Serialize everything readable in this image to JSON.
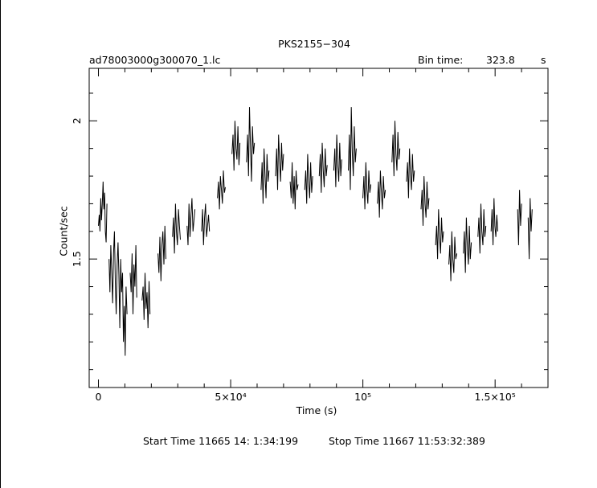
{
  "chart_data": {
    "type": "line",
    "title": "PKS2155−304",
    "subtitle_left": "ad78003000g300070_1.lc",
    "bin_time_label": "Bin time:",
    "bin_time_value": "323.8",
    "bin_time_unit": "s",
    "xlabel": "Time (s)",
    "ylabel": "Count/sec",
    "footer": {
      "start": "Start Time 11665 14: 1:34:199",
      "stop": "Stop Time 11667 11:53:32:389"
    },
    "xlim": [
      -3500,
      170000
    ],
    "ylim": [
      1.035,
      2.19
    ],
    "x_ticks": [
      {
        "value": 0,
        "label": "0"
      },
      {
        "value": 50000,
        "label": "5×10⁴"
      },
      {
        "value": 100000,
        "label": "10⁵"
      },
      {
        "value": 150000,
        "label": "1.5×10⁵"
      }
    ],
    "y_ticks": [
      {
        "value": 1.5,
        "label": "1.5"
      },
      {
        "value": 2.0,
        "label": "2"
      }
    ],
    "grid": false,
    "segments": [
      {
        "t_start": 0,
        "t_end": 3200,
        "values": [
          1.62,
          1.66,
          1.6,
          1.72,
          1.64,
          1.7,
          1.78,
          1.68,
          1.74,
          1.6,
          1.56,
          1.7
        ]
      },
      {
        "t_start": 4000,
        "t_end": 10800,
        "values": [
          1.5,
          1.38,
          1.55,
          1.46,
          1.34,
          1.52,
          1.6,
          1.42,
          1.3,
          1.48,
          1.56,
          1.44,
          1.25,
          1.5,
          1.38,
          1.45,
          1.2,
          1.33,
          1.15,
          1.4,
          1.3
        ]
      },
      {
        "t_start": 12000,
        "t_end": 14500,
        "values": [
          1.45,
          1.38,
          1.52,
          1.3,
          1.48,
          1.4,
          1.55,
          1.36
        ]
      },
      {
        "t_start": 16500,
        "t_end": 19500,
        "values": [
          1.35,
          1.4,
          1.28,
          1.45,
          1.32,
          1.38,
          1.25,
          1.42,
          1.3
        ]
      },
      {
        "t_start": 22500,
        "t_end": 25500,
        "values": [
          1.52,
          1.45,
          1.58,
          1.42,
          1.55,
          1.6,
          1.48,
          1.62,
          1.5
        ]
      },
      {
        "t_start": 28000,
        "t_end": 31000,
        "values": [
          1.58,
          1.65,
          1.52,
          1.7,
          1.6,
          1.55,
          1.68,
          1.62,
          1.57
        ]
      },
      {
        "t_start": 33500,
        "t_end": 36500,
        "values": [
          1.62,
          1.55,
          1.7,
          1.58,
          1.66,
          1.72,
          1.6,
          1.64,
          1.68
        ]
      },
      {
        "t_start": 39000,
        "t_end": 42000,
        "values": [
          1.6,
          1.68,
          1.55,
          1.65,
          1.7,
          1.58,
          1.62,
          1.66,
          1.6
        ]
      },
      {
        "t_start": 45000,
        "t_end": 48000,
        "values": [
          1.72,
          1.78,
          1.68,
          1.8,
          1.75,
          1.7,
          1.82,
          1.74,
          1.76
        ]
      },
      {
        "t_start": 50500,
        "t_end": 53500,
        "values": [
          1.88,
          1.95,
          1.82,
          2.0,
          1.9,
          1.86,
          1.98,
          1.84,
          1.92
        ]
      },
      {
        "t_start": 56000,
        "t_end": 59000,
        "values": [
          1.85,
          1.95,
          1.8,
          2.05,
          1.9,
          1.78,
          1.98,
          1.88,
          1.92
        ]
      },
      {
        "t_start": 61500,
        "t_end": 64500,
        "values": [
          1.75,
          1.85,
          1.7,
          1.9,
          1.8,
          1.72,
          1.88,
          1.78,
          1.82
        ]
      },
      {
        "t_start": 67000,
        "t_end": 70000,
        "values": [
          1.8,
          1.9,
          1.75,
          1.95,
          1.85,
          1.78,
          1.92,
          1.82,
          1.88
        ]
      },
      {
        "t_start": 72500,
        "t_end": 75500,
        "values": [
          1.78,
          1.72,
          1.85,
          1.7,
          1.8,
          1.68,
          1.82,
          1.75,
          1.77
        ]
      },
      {
        "t_start": 78000,
        "t_end": 81000,
        "values": [
          1.75,
          1.82,
          1.7,
          1.88,
          1.78,
          1.72,
          1.85,
          1.74,
          1.8
        ]
      },
      {
        "t_start": 83500,
        "t_end": 86500,
        "values": [
          1.8,
          1.88,
          1.74,
          1.92,
          1.82,
          1.76,
          1.9,
          1.8,
          1.84
        ]
      },
      {
        "t_start": 89000,
        "t_end": 92000,
        "values": [
          1.82,
          1.9,
          1.76,
          1.95,
          1.84,
          1.78,
          1.92,
          1.8,
          1.86
        ]
      },
      {
        "t_start": 94500,
        "t_end": 97500,
        "values": [
          1.82,
          1.95,
          1.75,
          2.05,
          1.88,
          1.8,
          1.98,
          1.85,
          1.9
        ]
      },
      {
        "t_start": 100000,
        "t_end": 103000,
        "values": [
          1.72,
          1.8,
          1.68,
          1.85,
          1.75,
          1.7,
          1.82,
          1.74,
          1.77
        ]
      },
      {
        "t_start": 105500,
        "t_end": 108500,
        "values": [
          1.7,
          1.78,
          1.65,
          1.82,
          1.74,
          1.68,
          1.8,
          1.72,
          1.75
        ]
      },
      {
        "t_start": 111000,
        "t_end": 114000,
        "values": [
          1.85,
          1.95,
          1.8,
          2.0,
          1.88,
          1.82,
          1.96,
          1.86,
          1.9
        ]
      },
      {
        "t_start": 116500,
        "t_end": 119500,
        "values": [
          1.78,
          1.85,
          1.72,
          1.9,
          1.8,
          1.75,
          1.88,
          1.78,
          1.82
        ]
      },
      {
        "t_start": 122000,
        "t_end": 125000,
        "values": [
          1.68,
          1.75,
          1.62,
          1.8,
          1.7,
          1.65,
          1.78,
          1.68,
          1.72
        ]
      },
      {
        "t_start": 127500,
        "t_end": 130500,
        "values": [
          1.55,
          1.62,
          1.5,
          1.68,
          1.58,
          1.52,
          1.65,
          1.56,
          1.6
        ]
      },
      {
        "t_start": 132500,
        "t_end": 135500,
        "values": [
          1.48,
          1.55,
          1.42,
          1.6,
          1.5,
          1.45,
          1.58,
          1.5,
          1.52
        ]
      },
      {
        "t_start": 138000,
        "t_end": 141000,
        "values": [
          1.52,
          1.6,
          1.45,
          1.65,
          1.55,
          1.48,
          1.62,
          1.5,
          1.56
        ]
      },
      {
        "t_start": 143500,
        "t_end": 146500,
        "values": [
          1.58,
          1.65,
          1.52,
          1.7,
          1.6,
          1.55,
          1.68,
          1.58,
          1.62
        ]
      },
      {
        "t_start": 148500,
        "t_end": 151000,
        "values": [
          1.6,
          1.68,
          1.55,
          1.72,
          1.62,
          1.58,
          1.66,
          1.6
        ]
      },
      {
        "t_start": 158500,
        "t_end": 160000,
        "values": [
          1.68,
          1.55,
          1.75,
          1.62,
          1.7
        ]
      },
      {
        "t_start": 162500,
        "t_end": 164000,
        "values": [
          1.65,
          1.5,
          1.72,
          1.6,
          1.68
        ]
      }
    ]
  }
}
